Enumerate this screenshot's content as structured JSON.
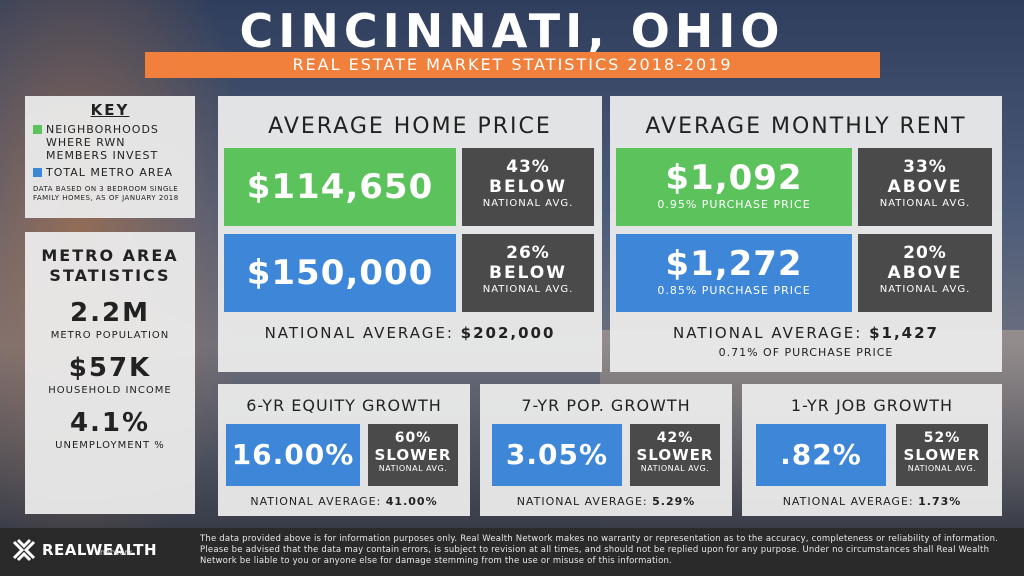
{
  "title": "CINCINNATI, OHIO",
  "subtitle": "REAL ESTATE MARKET STATISTICS 2018-2019",
  "colors": {
    "green": "#5cc25c",
    "blue": "#3d86d8",
    "orange": "#f0803c",
    "dark": "#4a4a4a"
  },
  "key": {
    "heading": "KEY",
    "green_label": "NEIGHBORHOODS WHERE RWN MEMBERS INVEST",
    "blue_label": "TOTAL METRO AREA",
    "note": "DATA BASED ON 3 BEDROOM SINGLE FAMILY HOMES, AS OF JANUARY 2018"
  },
  "metro": {
    "heading": "METRO AREA STATISTICS",
    "population_value": "2.2M",
    "population_label": "METRO POPULATION",
    "income_value": "$57K",
    "income_label": "HOUSEHOLD INCOME",
    "unemployment_value": "4.1%",
    "unemployment_label": "UNEMPLOYMENT %"
  },
  "home_price": {
    "title": "AVERAGE HOME PRICE",
    "rwn_value": "$114,650",
    "rwn_pct": "43%",
    "rwn_word": "BELOW",
    "rwn_sub": "NATIONAL AVG.",
    "metro_value": "$150,000",
    "metro_pct": "26%",
    "metro_word": "BELOW",
    "metro_sub": "NATIONAL AVG.",
    "national_label": "NATIONAL AVERAGE:",
    "national_value": "$202,000"
  },
  "rent": {
    "title": "AVERAGE MONTHLY RENT",
    "rwn_value": "$1,092",
    "rwn_sub": "0.95% PURCHASE PRICE",
    "rwn_pct": "33%",
    "rwn_word": "ABOVE",
    "rwn_cmp_sub": "NATIONAL AVG.",
    "metro_value": "$1,272",
    "metro_sub": "0.85% PURCHASE PRICE",
    "metro_pct": "20%",
    "metro_word": "ABOVE",
    "metro_cmp_sub": "NATIONAL AVG.",
    "national_label": "NATIONAL AVERAGE:",
    "national_value": "$1,427",
    "national_sub": "0.71% OF PURCHASE PRICE"
  },
  "equity": {
    "title": "6-YR EQUITY GROWTH",
    "value": "16.00%",
    "pct": "60%",
    "word": "SLOWER",
    "sub": "NATIONAL AVG.",
    "national_label": "NATIONAL AVERAGE:",
    "national_value": "41.00%"
  },
  "population": {
    "title": "7-YR POP. GROWTH",
    "value": "3.05%",
    "pct": "42%",
    "word": "SLOWER",
    "sub": "NATIONAL AVG.",
    "national_label": "NATIONAL AVERAGE:",
    "national_value": "5.29%"
  },
  "jobs": {
    "title": "1-YR JOB GROWTH",
    "value": ".82%",
    "pct": "52%",
    "word": "SLOWER",
    "sub": "NATIONAL AVG.",
    "national_label": "NATIONAL AVERAGE:",
    "national_value": "1.73%"
  },
  "footer": {
    "logo_text": "REALWEALTH",
    "logo_sub": "network",
    "disclaimer": "The data provided above is for information purposes only. Real Wealth Network makes no warranty or representation as to the accuracy, completeness or reliability of information. Please be advised that the data may contain errors, is subject to revision at all times, and should not be replied upon for any purpose. Under no circumstances shall Real Wealth Network be liable to you or anyone else for damage stemming from the use or misuse of this information."
  }
}
